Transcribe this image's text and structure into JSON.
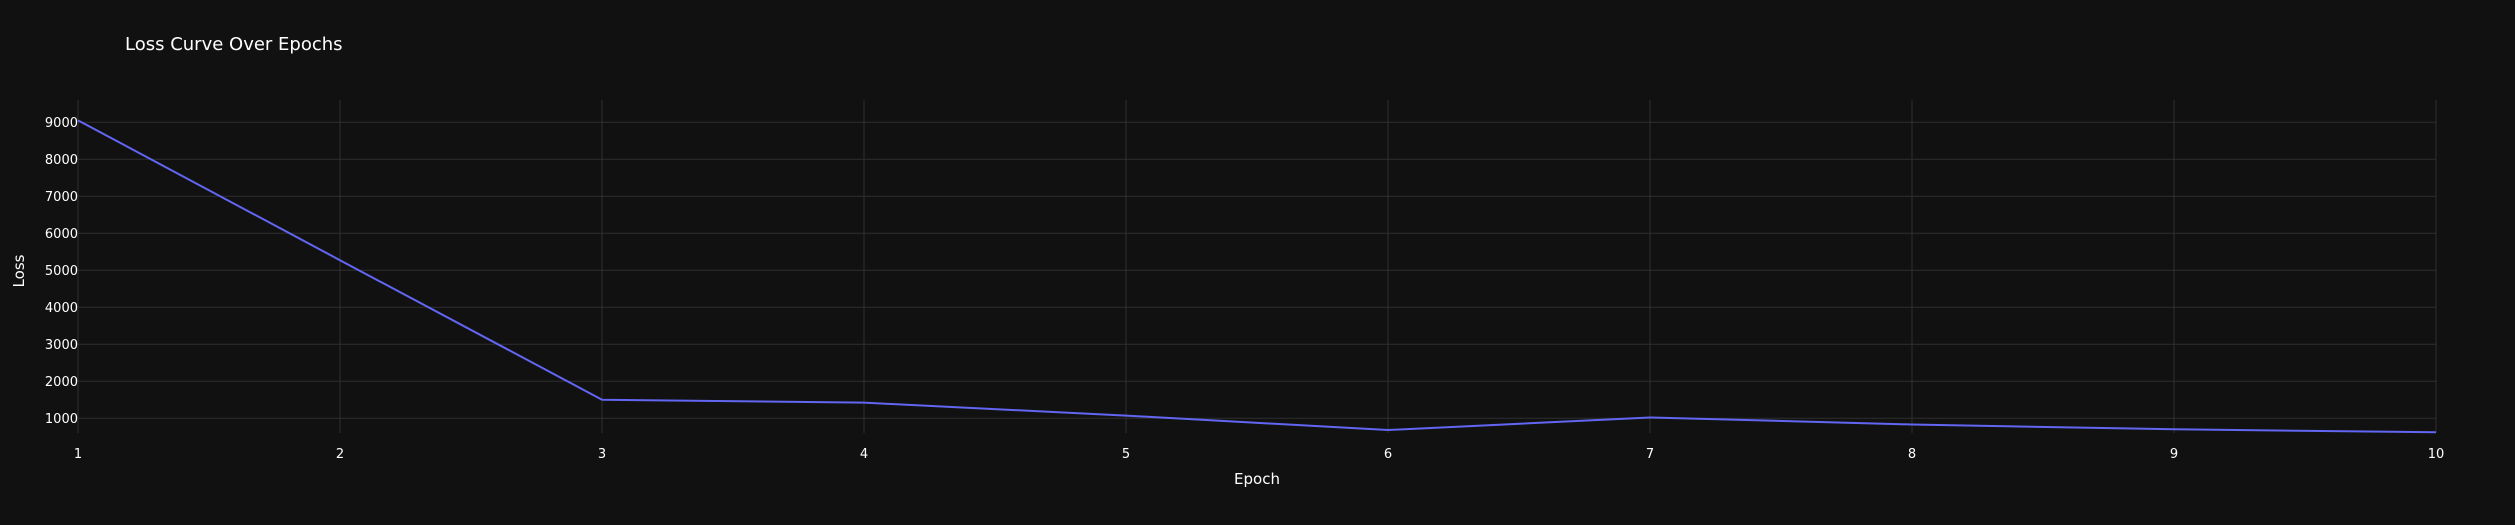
{
  "chart_data": {
    "type": "line",
    "title": "Loss Curve Over Epochs",
    "xlabel": "Epoch",
    "ylabel": "Loss",
    "x": [
      1,
      2,
      3,
      4,
      5,
      6,
      7,
      8,
      9,
      10
    ],
    "series": [
      {
        "values": [
          9050,
          5270,
          1500,
          1420,
          1070,
          680,
          1020,
          830,
          700,
          620
        ],
        "color": "#6266f2"
      }
    ],
    "x_ticks": [
      "1",
      "2",
      "3",
      "4",
      "5",
      "6",
      "7",
      "8",
      "9",
      "10"
    ],
    "y_ticks": [
      "1000",
      "2000",
      "3000",
      "4000",
      "5000",
      "6000",
      "7000",
      "8000",
      "9000"
    ],
    "xlim": [
      1,
      10
    ],
    "ylim": [
      600,
      9600
    ],
    "grid": true,
    "background": "#111111",
    "text_color": "#ffffff",
    "grid_color": "#2f2f2f"
  }
}
